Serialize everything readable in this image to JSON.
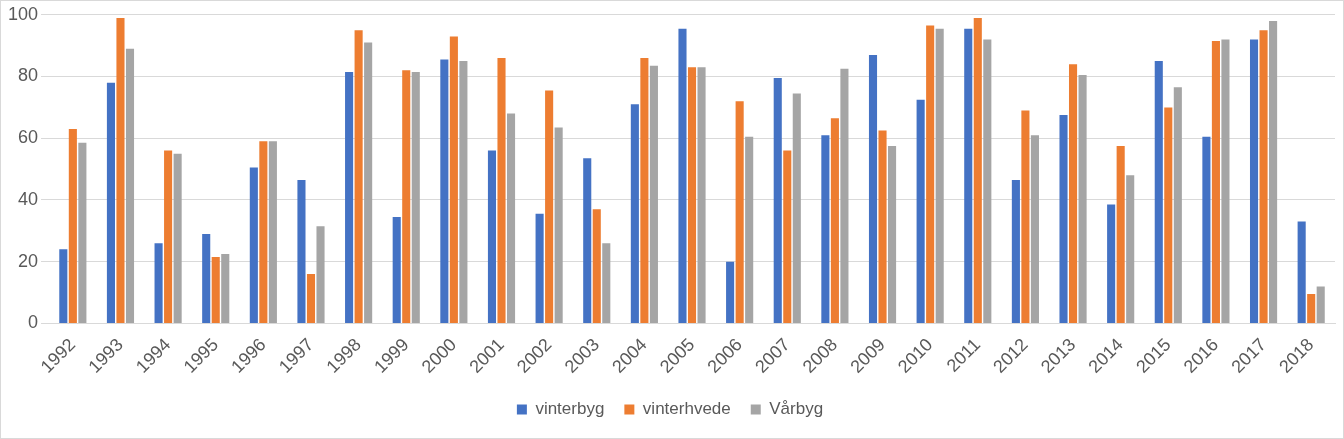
{
  "chart_data": {
    "type": "bar",
    "categories": [
      "1992",
      "1993",
      "1994",
      "1995",
      "1996",
      "1997",
      "1998",
      "1999",
      "2000",
      "2001",
      "2002",
      "2003",
      "2004",
      "2005",
      "2006",
      "2007",
      "2008",
      "2009",
      "2010",
      "2011",
      "2012",
      "2013",
      "2014",
      "2015",
      "2016",
      "2017",
      "2018"
    ],
    "series": [
      {
        "name": "vinterbyg",
        "color": "#4472c4",
        "values": [
          24,
          78,
          26,
          29,
          50.5,
          46.5,
          81.5,
          34.5,
          85.5,
          56,
          35.5,
          53.5,
          71,
          95.5,
          20,
          79.5,
          61,
          87,
          72.5,
          95.5,
          46.5,
          67.5,
          38.5,
          85,
          60.5,
          92,
          33
        ]
      },
      {
        "name": "vinterhvede",
        "color": "#ed7d31",
        "values": [
          63,
          99,
          56,
          21.5,
          59,
          16,
          95,
          82,
          93,
          86,
          75.5,
          37,
          86,
          83,
          72,
          56,
          66.5,
          62.5,
          96.5,
          99,
          69,
          84,
          57.5,
          70,
          91.5,
          95,
          9.5
        ]
      },
      {
        "name": "Vårbyg",
        "color": "#a5a5a5",
        "values": [
          58.5,
          89,
          55,
          22.5,
          59,
          31.5,
          91,
          81.5,
          85,
          68,
          63.5,
          26,
          83.5,
          83,
          60.5,
          74.5,
          82.5,
          57.5,
          95.5,
          92,
          61,
          80.5,
          48,
          76.5,
          92,
          98,
          12
        ]
      }
    ],
    "ylim": [
      0,
      100
    ],
    "yticks": [
      0,
      20,
      40,
      60,
      80,
      100
    ],
    "grid": "y",
    "legend": "bottom"
  }
}
